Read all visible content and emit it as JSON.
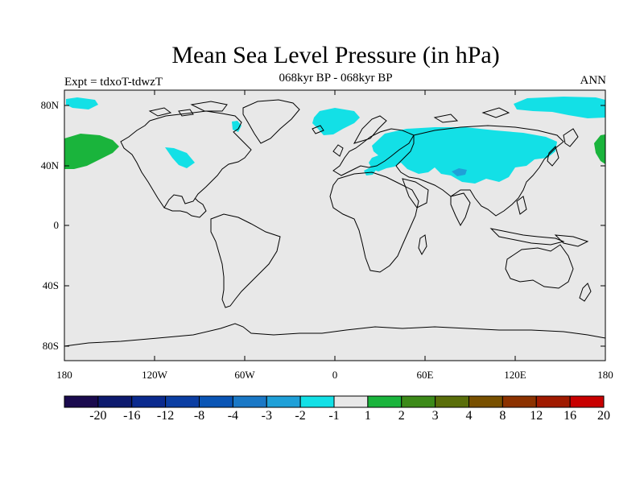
{
  "title": "Mean Sea Level Pressure (in hPa)",
  "subtitle": "068kyr BP - 068kyr BP",
  "left_label": "Expt = tdxoT-tdwzT",
  "right_label": "ANN",
  "lat_ticks": [
    "80N",
    "40N",
    "0",
    "40S",
    "80S"
  ],
  "lon_ticks": [
    "180",
    "120W",
    "60W",
    "0",
    "60E",
    "120E",
    "180"
  ],
  "colorbar": {
    "labels": [
      "-20",
      "-16",
      "-12",
      "-8",
      "-4",
      "-3",
      "-2",
      "-1",
      "1",
      "2",
      "3",
      "4",
      "8",
      "12",
      "16",
      "20"
    ],
    "colors": [
      "#1a0a4e",
      "#0d1a6e",
      "#0a2a8e",
      "#0b3ea3",
      "#0a55b5",
      "#1a78c6",
      "#1fa0d8",
      "#13e0e6",
      "#e8e8e8",
      "#1ab43c",
      "#3c8a19",
      "#5a6e0a",
      "#785000",
      "#8c3200",
      "#a01a00",
      "#c80000"
    ]
  },
  "map": {
    "background": "#e8e8e8",
    "anomaly_colors": {
      "cyan": "#13e0e6",
      "blue": "#1fa0d8",
      "green": "#1ab43c"
    }
  }
}
